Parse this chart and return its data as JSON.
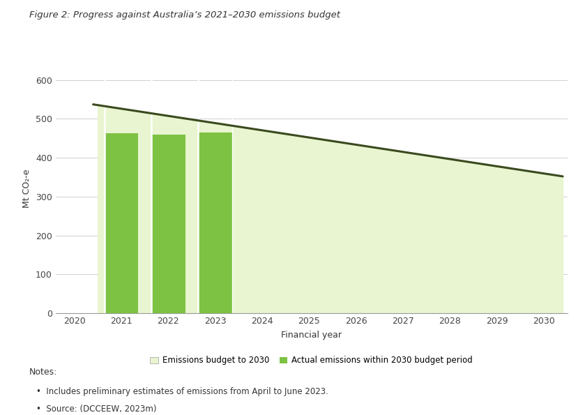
{
  "title": "Figure 2: Progress against Australia’s 2021–2030 emissions budget",
  "xlabel": "Financial year",
  "ylabel": "Mt CO₂-e",
  "background_color": "#ffffff",
  "fig_background": "#ffffff",
  "bar_years": [
    2021,
    2022,
    2023
  ],
  "bar_values": [
    463,
    460,
    465
  ],
  "bar_color": "#7dc242",
  "budget_shade_color": "#e8f5d0",
  "budget_line_x": [
    2020.4,
    2030.4
  ],
  "budget_line_y": [
    537,
    352
  ],
  "line_color": "#3a4a1e",
  "line_width": 2.2,
  "ylim": [
    0,
    640
  ],
  "yticks": [
    0,
    100,
    200,
    300,
    400,
    500,
    600
  ],
  "xlim": [
    2019.6,
    2030.5
  ],
  "xticks": [
    2020,
    2021,
    2022,
    2023,
    2024,
    2025,
    2026,
    2027,
    2028,
    2029,
    2030
  ],
  "shade_start_x": 2020.5,
  "shade_end_x": 2030.4,
  "legend_budget_label": "Emissions budget to 2030",
  "legend_actual_label": "Actual emissions within 2030 budget period",
  "note_line1": "Includes preliminary estimates of emissions from April to June 2023.",
  "note_line2": "Source: (DCCEEW, 2023m)",
  "notes_header": "Notes:",
  "title_fontsize": 9.5,
  "axis_fontsize": 9,
  "tick_fontsize": 9,
  "legend_fontsize": 8.5
}
